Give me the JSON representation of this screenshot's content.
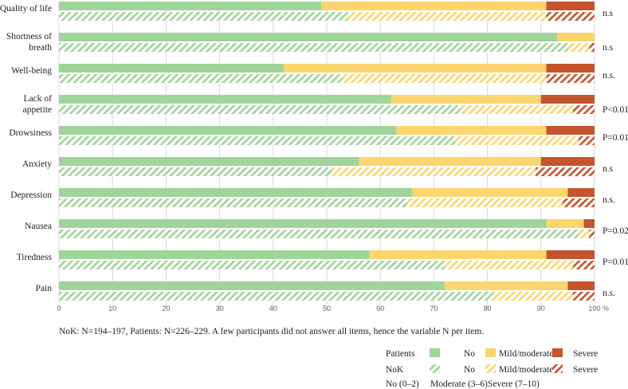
{
  "chart_data": {
    "type": "bar",
    "orientation": "horizontal",
    "stacked": true,
    "xlim": [
      0,
      100
    ],
    "x_ticks": [
      0,
      10,
      20,
      30,
      40,
      50,
      60,
      70,
      80,
      90,
      100
    ],
    "x_unit": "%",
    "categories": [
      {
        "label": [
          "Quality of life"
        ],
        "sig": "n.s"
      },
      {
        "label": [
          "Shortness of",
          "breath"
        ],
        "sig": "n.s"
      },
      {
        "label": [
          "Well-being"
        ],
        "sig": "n.s."
      },
      {
        "label": [
          "Lack of",
          "appetite"
        ],
        "sig": "P<0.01"
      },
      {
        "label": [
          "Drowsiness"
        ],
        "sig": "P=0.01"
      },
      {
        "label": [
          "Anxiety"
        ],
        "sig": "n.s"
      },
      {
        "label": [
          "Depression"
        ],
        "sig": "n.s."
      },
      {
        "label": [
          "Nausea"
        ],
        "sig": "P=0.02"
      },
      {
        "label": [
          "Tiredness"
        ],
        "sig": "P=0.01"
      },
      {
        "label": [
          "Pain"
        ],
        "sig": "n.s."
      }
    ],
    "segments": [
      "No",
      "Mild/moderate",
      "Severe"
    ],
    "series": [
      {
        "name": "Patients",
        "pattern": "solid",
        "values": [
          [
            49,
            42,
            9
          ],
          [
            93,
            7,
            0
          ],
          [
            42,
            49,
            9
          ],
          [
            62,
            28,
            10
          ],
          [
            63,
            28,
            9
          ],
          [
            56,
            34,
            10
          ],
          [
            66,
            29,
            5
          ],
          [
            91,
            7,
            2
          ],
          [
            58,
            33,
            9
          ],
          [
            72,
            23,
            5
          ]
        ]
      },
      {
        "name": "NoK",
        "pattern": "hatched",
        "values": [
          [
            54,
            37,
            9
          ],
          [
            95,
            4,
            1
          ],
          [
            53,
            38,
            9
          ],
          [
            75,
            21,
            4
          ],
          [
            74,
            23,
            3
          ],
          [
            51,
            38,
            11
          ],
          [
            65,
            29,
            6
          ],
          [
            97,
            2,
            1
          ],
          [
            72,
            24,
            4
          ],
          [
            81,
            15,
            4
          ]
        ]
      }
    ],
    "colors": {
      "No": "#9fd49a",
      "Mild/moderate": "#fbd56d",
      "Severe": "#c4542d"
    },
    "note": "NoK: N=194–197, Patients: N=226–229. A few participants did not answer all items, hence the variable N per item.",
    "legend": {
      "rows": [
        {
          "label": "Patients",
          "pattern": "solid"
        },
        {
          "label": "NoK",
          "pattern": "hatched"
        }
      ],
      "entries": [
        "No",
        "Mild/moderate",
        "Severe"
      ],
      "scale_text": [
        "No (0–2)",
        "Moderate (3–6)",
        "Severe (7–10)"
      ]
    }
  }
}
